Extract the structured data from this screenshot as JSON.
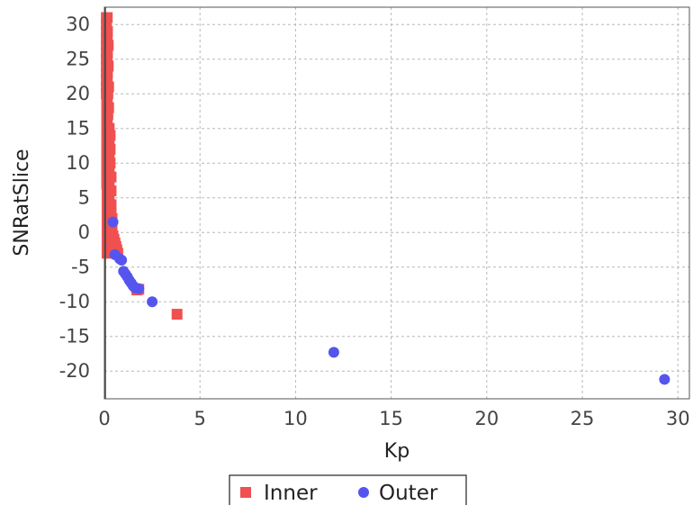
{
  "chart_data": {
    "type": "scatter",
    "title": "",
    "xlabel": "Kp",
    "ylabel": "SNRatSlice",
    "xlim": [
      0,
      30.6
    ],
    "ylim": [
      -24,
      32.5
    ],
    "x_ticks": [
      0,
      5,
      10,
      15,
      20,
      25,
      30
    ],
    "y_ticks": [
      30,
      25,
      20,
      15,
      10,
      5,
      0,
      -5,
      -10,
      -15,
      -20
    ],
    "grid": true,
    "legend_position": "bottom-center",
    "series": [
      {
        "name": "Inner",
        "marker": "square",
        "color": "#f05050",
        "x": [
          0.1,
          0.1,
          0.1,
          0.1,
          0.1,
          0.1,
          0.1,
          0.1,
          0.1,
          0.1,
          0.1,
          0.1,
          0.12,
          0.12,
          0.12,
          0.12,
          0.12,
          0.12,
          0.12,
          0.12,
          0.12,
          0.12,
          0.12,
          0.12,
          0.12,
          0.14,
          0.14,
          0.14,
          0.14,
          0.14,
          0.14,
          0.14,
          0.14,
          0.14,
          0.14,
          0.15,
          0.15,
          0.15,
          0.15,
          0.15,
          0.15,
          0.15,
          0.15,
          0.16,
          0.16,
          0.16,
          0.16,
          0.16,
          0.16,
          0.16,
          0.18,
          0.18,
          0.18,
          0.2,
          0.2,
          0.2,
          0.2,
          0.2,
          0.2,
          0.2,
          0.22,
          0.22,
          0.22,
          0.22,
          0.22,
          0.22,
          0.22,
          0.25,
          0.25,
          0.25,
          0.25,
          0.25,
          0.25,
          0.25,
          0.3,
          0.3,
          0.3,
          0.3,
          0.3,
          0.35,
          0.35,
          0.35,
          0.35,
          0.4,
          0.4,
          0.4,
          0.45,
          0.5,
          0.55,
          0.6,
          0.65,
          0.7,
          1.7,
          1.8,
          3.8
        ],
        "y": [
          31,
          30,
          29,
          28,
          27,
          26,
          25,
          24,
          23,
          22,
          21,
          20,
          19,
          18,
          17,
          16,
          15,
          14,
          13,
          12,
          11,
          10,
          9,
          8,
          7,
          6,
          5,
          4,
          3,
          2,
          1,
          0,
          -1,
          -2,
          -3,
          31,
          28,
          25,
          22,
          19,
          16,
          13,
          10,
          7,
          4,
          1,
          -2,
          29,
          26,
          23,
          20,
          17,
          14,
          11,
          8,
          5,
          2,
          -1,
          27,
          24,
          21,
          18,
          15,
          12,
          9,
          6,
          3,
          0,
          15,
          13,
          11,
          9,
          7,
          5,
          3,
          2,
          14,
          12,
          10,
          8,
          6,
          4,
          3,
          2,
          1,
          0,
          -0.5,
          -1,
          -1.5,
          -2,
          -2.5,
          -3,
          -8.3,
          -8.2,
          -11.8
        ]
      },
      {
        "name": "Outer",
        "marker": "circle",
        "color": "#5555ee",
        "x": [
          0.45,
          0.55,
          0.8,
          0.9,
          1.0,
          1.1,
          1.2,
          1.3,
          1.4,
          1.5,
          1.6,
          1.8,
          2.5,
          12.0,
          29.3
        ],
        "y": [
          1.5,
          -3.2,
          -3.8,
          -4.0,
          -5.6,
          -6.0,
          -6.4,
          -6.9,
          -7.3,
          -7.7,
          -8.0,
          -8.1,
          -10.0,
          -17.3,
          -21.2
        ]
      }
    ]
  }
}
